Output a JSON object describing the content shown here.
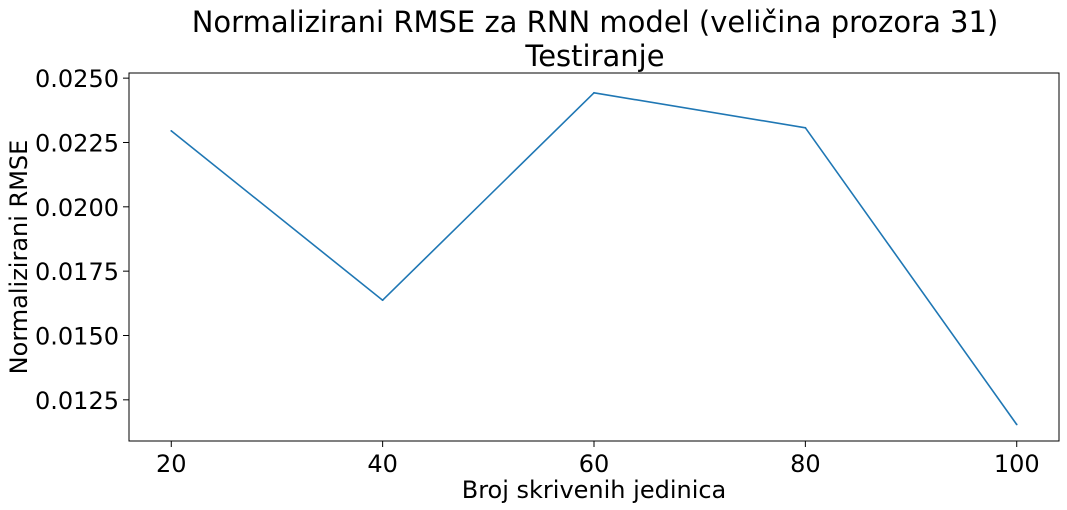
{
  "chart_data": {
    "type": "line",
    "title": "Normalizirani RMSE za RNN model (veličina prozora 31)",
    "subtitle": "Testiranje",
    "xlabel": "Broj skrivenih jedinica",
    "ylabel": "Normalizirani RMSE",
    "x": [
      20,
      40,
      60,
      80,
      100
    ],
    "series": [
      {
        "values": [
          0.02295,
          0.01637,
          0.02443,
          0.02307,
          0.01154
        ]
      }
    ],
    "xlim": [
      16,
      104
    ],
    "ylim": [
      0.0109,
      0.0252
    ],
    "xticks": [
      "20",
      "40",
      "60",
      "80",
      "100"
    ],
    "yticks": [
      "0.0125",
      "0.0150",
      "0.0175",
      "0.0200",
      "0.0225",
      "0.0250"
    ],
    "grid": false,
    "line_color": "#1f77b4"
  }
}
